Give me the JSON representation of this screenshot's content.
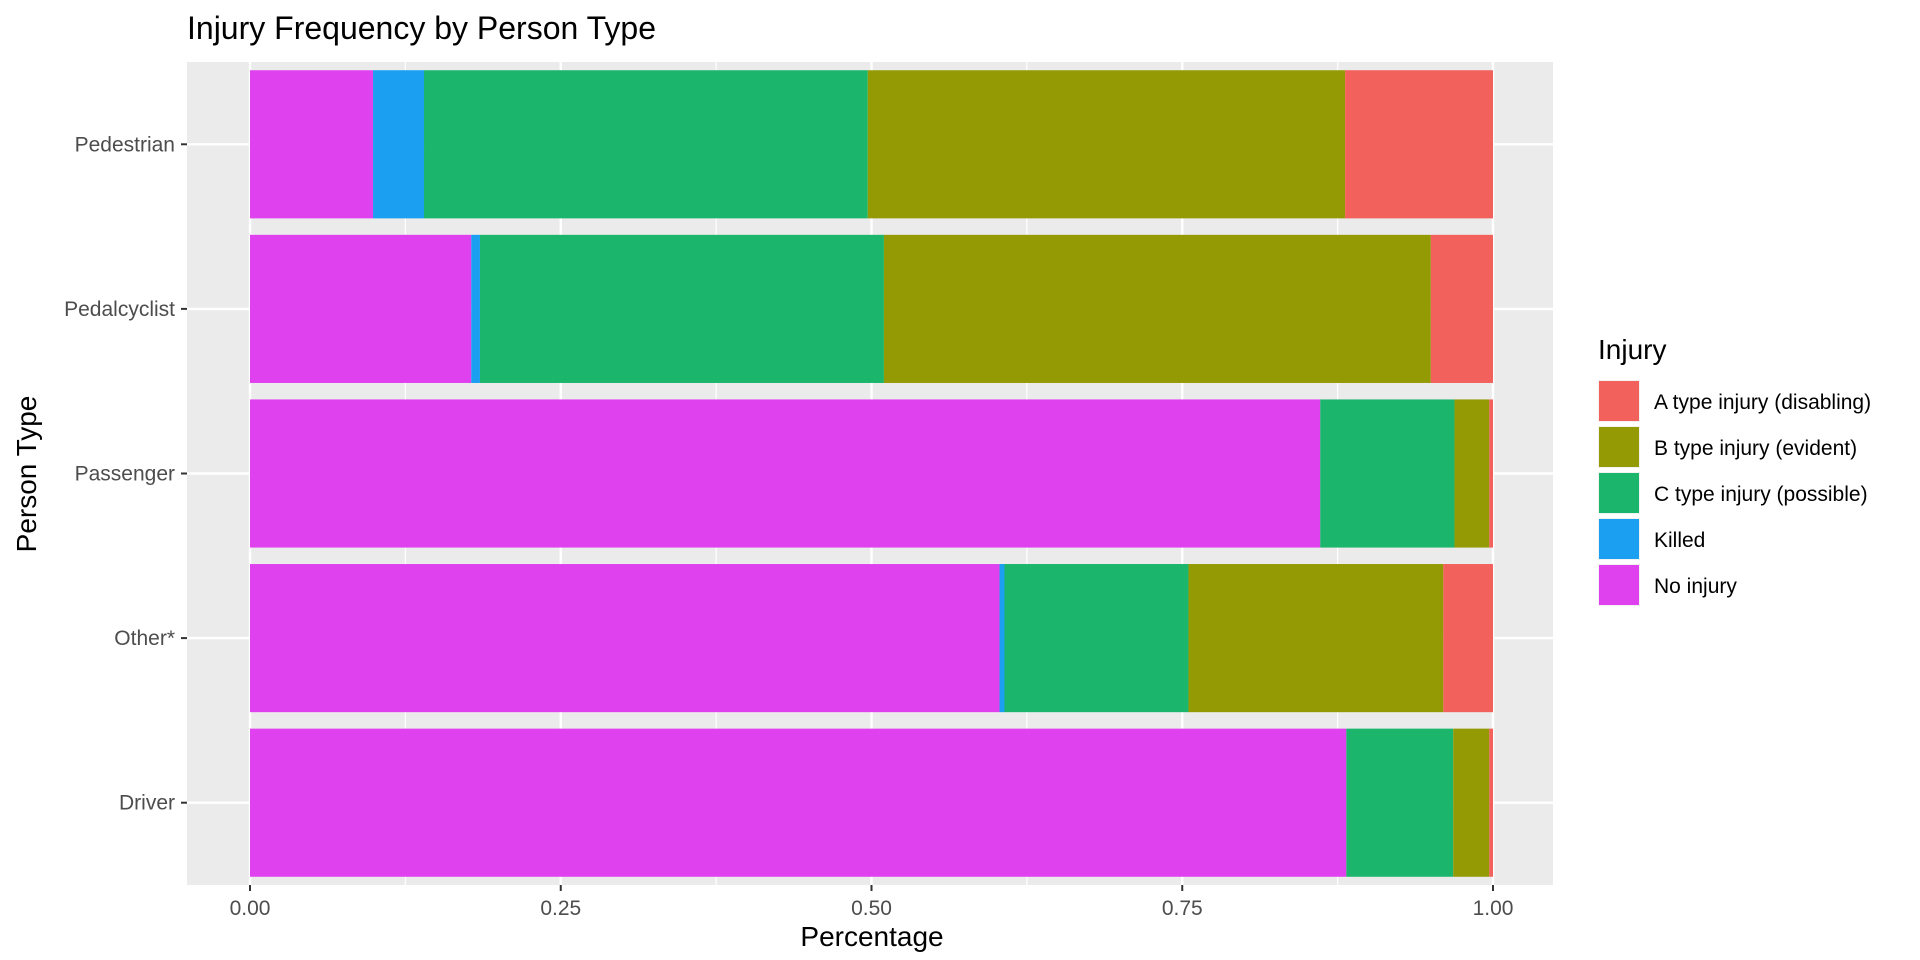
{
  "chart_data": {
    "type": "bar",
    "orientation": "horizontal",
    "stacked": "fill",
    "title": "Injury Frequency by Person Type",
    "xlabel": "Percentage",
    "ylabel": "Person Type",
    "xlim": [
      0,
      1
    ],
    "x_ticks": [
      "0.00",
      "0.25",
      "0.50",
      "0.75",
      "1.00"
    ],
    "x_tick_values": [
      0,
      0.25,
      0.5,
      0.75,
      1.0
    ],
    "categories": [
      "Driver",
      "Other*",
      "Passenger",
      "Pedalcyclist",
      "Pedestrian"
    ],
    "grid": true,
    "legend_position": "right",
    "legend_title": "Injury",
    "series": [
      {
        "name": "No injury",
        "color": "#E041EF",
        "values": [
          0.882,
          0.603,
          0.861,
          0.178,
          0.099
        ]
      },
      {
        "name": "Killed",
        "color": "#1A9FF1",
        "values": [
          0.0,
          0.004,
          0.0,
          0.007,
          0.041
        ]
      },
      {
        "name": "C type injury (possible)",
        "color": "#1BB56C",
        "values": [
          0.086,
          0.148,
          0.108,
          0.325,
          0.357
        ]
      },
      {
        "name": "B type injury (evident)",
        "color": "#949A04",
        "values": [
          0.029,
          0.205,
          0.028,
          0.44,
          0.384
        ]
      },
      {
        "name": "A type injury (disabling)",
        "color": "#F2615C",
        "values": [
          0.003,
          0.04,
          0.003,
          0.05,
          0.119
        ]
      }
    ],
    "legend_order": [
      "A type injury (disabling)",
      "B type injury (evident)",
      "C type injury (possible)",
      "Killed",
      "No injury"
    ]
  }
}
